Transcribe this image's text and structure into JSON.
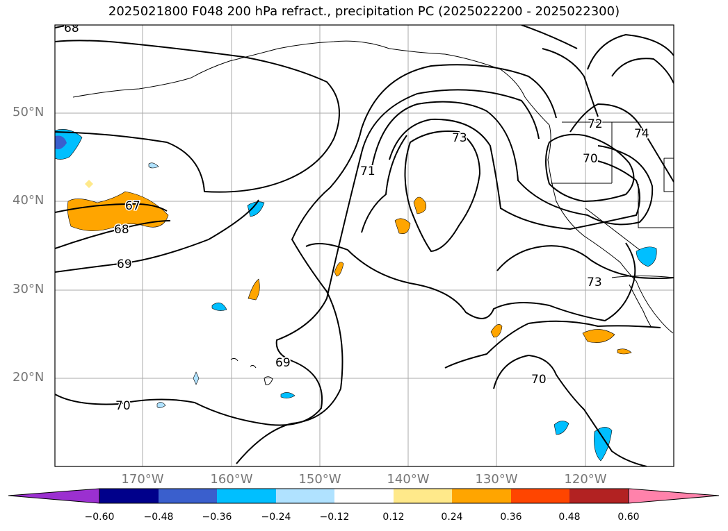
{
  "title": "2025021800 F048 200 hPa refract., precipitation PC (2025022200 - 2025022300)",
  "map": {
    "lat_labels": [
      "50°N",
      "40°N",
      "30°N",
      "20°N"
    ],
    "lon_labels": [
      "170°W",
      "160°W",
      "150°W",
      "140°W",
      "130°W",
      "120°W"
    ],
    "contour_labels": [
      "68",
      "67",
      "68",
      "69",
      "70",
      "71",
      "73",
      "72",
      "74",
      "70",
      "73",
      "69",
      "70"
    ],
    "grid": true
  },
  "colorbar": {
    "ticks": [
      "−0.60",
      "−0.48",
      "−0.36",
      "−0.24",
      "−0.12",
      "0.12",
      "0.24",
      "0.36",
      "0.48",
      "0.60"
    ],
    "colors": [
      "#9b30d0",
      "#00008b",
      "#3a5fcd",
      "#00bfff",
      "#b0e2ff",
      "#ffffff",
      "#ffe98a",
      "#ffa500",
      "#ff4500",
      "#b22222",
      "#ff82ab"
    ]
  }
}
